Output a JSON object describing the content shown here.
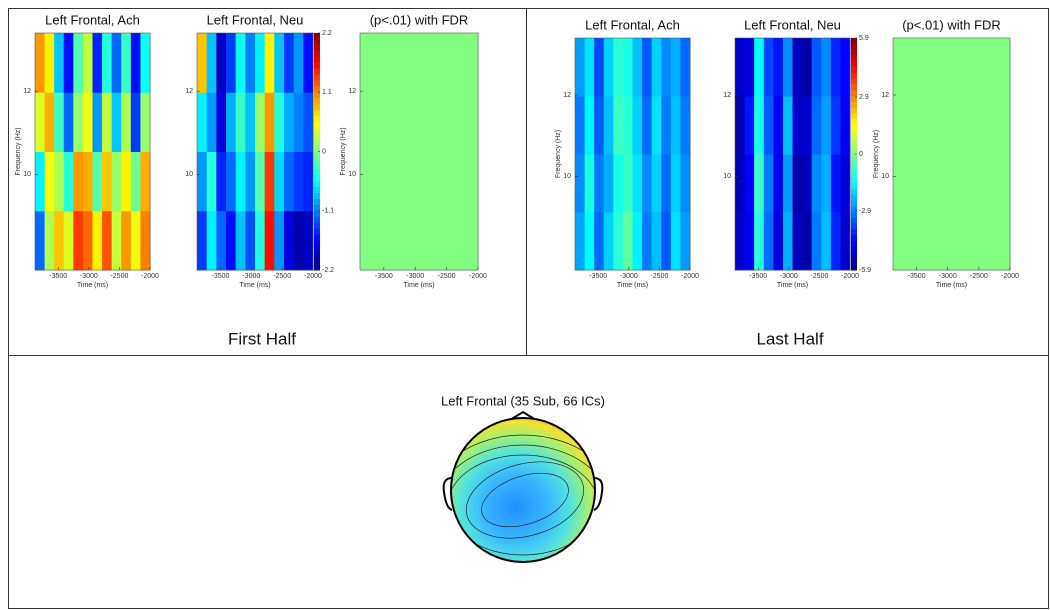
{
  "chart_data": [
    {
      "type": "heatmap",
      "title": "Left Frontal, Ach",
      "xlabel": "Time (ms)",
      "ylabel": "Frequency (Hz)",
      "xlim": [
        -3880,
        -2000
      ],
      "xticks": [
        -3500,
        -3000,
        -2500,
        -2000
      ],
      "ylim": [
        7.7,
        13.4
      ],
      "yticks": [
        10,
        12
      ],
      "clim": [
        -2.2,
        2.2
      ],
      "colormap": "jet",
      "colorbar": false,
      "values": [
        [
          -1.2,
          0.2,
          0.8,
          0.4,
          1.4,
          1.2,
          0.6,
          1.3,
          0.3,
          1.0,
          0.5,
          1.1
        ],
        [
          -0.6,
          0.5,
          0.2,
          -0.4,
          1.0,
          0.9,
          -0.2,
          0.8,
          0.1,
          0.6,
          -0.1,
          0.9
        ],
        [
          0.4,
          0.9,
          -0.3,
          -1.2,
          0.1,
          0.5,
          -1.0,
          0.3,
          -0.8,
          0.2,
          -1.4,
          0.1
        ],
        [
          1.0,
          0.6,
          -0.8,
          -1.6,
          -0.2,
          0.3,
          -1.5,
          -0.4,
          -1.2,
          -0.3,
          -1.6,
          -0.5
        ]
      ]
    },
    {
      "type": "heatmap",
      "title": "Left Frontal, Neu",
      "xlabel": "Time (ms)",
      "xlim": [
        -3880,
        -2000
      ],
      "xticks": [
        -3500,
        -3000,
        -2500,
        -2000
      ],
      "ylim": [
        7.7,
        13.4
      ],
      "yticks": [
        10,
        12
      ],
      "clim": [
        -2.2,
        2.2
      ],
      "colormap": "jet",
      "colorbar": true,
      "cticks": [
        -2.2,
        -1.1,
        0,
        1.1,
        2.2
      ],
      "values": [
        [
          -1.4,
          -0.6,
          -1.2,
          -1.6,
          -0.8,
          -1.3,
          -0.4,
          1.6,
          -1.0,
          -1.8,
          -2.0,
          -1.9
        ],
        [
          -1.0,
          -0.4,
          -1.5,
          -1.2,
          -0.6,
          -1.0,
          -0.2,
          1.4,
          -0.7,
          -1.2,
          -1.4,
          -1.5
        ],
        [
          -0.6,
          -1.0,
          -1.8,
          -0.9,
          -0.3,
          -0.8,
          0.1,
          1.0,
          -0.4,
          -0.9,
          -1.1,
          -1.3
        ],
        [
          0.8,
          -0.8,
          -1.9,
          -1.4,
          -0.5,
          -1.1,
          -0.6,
          0.6,
          -0.8,
          -1.4,
          -1.0,
          -1.6
        ]
      ]
    },
    {
      "type": "heatmap",
      "title": "(p<.01) with FDR",
      "xlabel": "Time (ms)",
      "ylabel": "Frequency (Hz)",
      "xlim": [
        -3880,
        -2000
      ],
      "xticks": [
        -3500,
        -3000,
        -2500,
        -2000
      ],
      "ylim": [
        7.7,
        13.4
      ],
      "yticks": [
        10,
        12
      ],
      "clim": [
        -2.2,
        2.2
      ],
      "colormap": "jet",
      "colorbar": false,
      "values": [
        [
          0
        ]
      ]
    },
    {
      "type": "heatmap",
      "title": "Left Frontal, Ach",
      "xlabel": "Time (ms)",
      "ylabel": "Frequency (Hz)",
      "xlim": [
        -3880,
        -2000
      ],
      "xticks": [
        -3500,
        -3000,
        -2500,
        -2000
      ],
      "ylim": [
        7.7,
        13.4
      ],
      "yticks": [
        10,
        12
      ],
      "clim": [
        -5.9,
        5.9
      ],
      "colormap": "jet",
      "colorbar": false,
      "values": [
        [
          -2.5,
          -1.5,
          -3.2,
          -2.0,
          -1.0,
          -0.4,
          -1.6,
          -3.0,
          -2.2,
          -3.4,
          -1.8,
          -2.6
        ],
        [
          -2.8,
          -1.2,
          -3.0,
          -2.4,
          -1.2,
          -0.8,
          -1.8,
          -2.8,
          -2.0,
          -3.2,
          -2.0,
          -2.8
        ],
        [
          -3.0,
          -1.6,
          -3.4,
          -2.2,
          -0.8,
          -1.0,
          -2.0,
          -3.2,
          -1.8,
          -3.0,
          -2.2,
          -3.0
        ],
        [
          -2.6,
          -1.8,
          -3.6,
          -2.0,
          -1.0,
          -1.2,
          -2.2,
          -3.4,
          -2.0,
          -2.8,
          -2.4,
          -3.2
        ]
      ]
    },
    {
      "type": "heatmap",
      "title": "Left Frontal, Neu",
      "xlabel": "Time (ms)",
      "xlim": [
        -3880,
        -2000
      ],
      "xticks": [
        -3500,
        -3000,
        -2500,
        -2000
      ],
      "ylim": [
        7.7,
        13.4
      ],
      "yticks": [
        10,
        12
      ],
      "clim": [
        -5.9,
        5.9
      ],
      "colormap": "jet",
      "colorbar": true,
      "cticks": [
        -5.9,
        -2.9,
        0,
        2.9,
        5.9
      ],
      "values": [
        [
          -5.0,
          -4.6,
          -1.0,
          -3.2,
          -4.8,
          -2.4,
          -5.2,
          -5.4,
          -3.0,
          -2.2,
          -4.0,
          -5.0
        ],
        [
          -5.2,
          -4.4,
          -0.8,
          -3.0,
          -4.6,
          -2.6,
          -5.4,
          -5.2,
          -2.8,
          -2.4,
          -4.2,
          -4.8
        ],
        [
          -5.4,
          -4.2,
          -1.2,
          -3.4,
          -4.4,
          -2.2,
          -5.0,
          -5.0,
          -3.2,
          -2.6,
          -3.8,
          -4.6
        ],
        [
          -5.0,
          -4.8,
          -1.4,
          -3.6,
          -4.2,
          -2.8,
          -5.2,
          -5.4,
          -3.4,
          -2.8,
          -4.0,
          -4.4
        ]
      ]
    },
    {
      "type": "heatmap",
      "title": "(p<.01) with FDR",
      "xlabel": "Time (ms)",
      "ylabel": "Frequency (Hz)",
      "xlim": [
        -3880,
        -2000
      ],
      "xticks": [
        -3500,
        -3000,
        -2500,
        -2000
      ],
      "ylim": [
        7.7,
        13.4
      ],
      "yticks": [
        10,
        12
      ],
      "clim": [
        -5.9,
        5.9
      ],
      "colormap": "jet",
      "colorbar": false,
      "values": [
        [
          0
        ]
      ]
    }
  ],
  "panels": [
    {
      "label": "First Half"
    },
    {
      "label": "Last Half"
    }
  ],
  "topoplot": {
    "title": "Left Frontal (35 Sub, 66 ICs)"
  }
}
